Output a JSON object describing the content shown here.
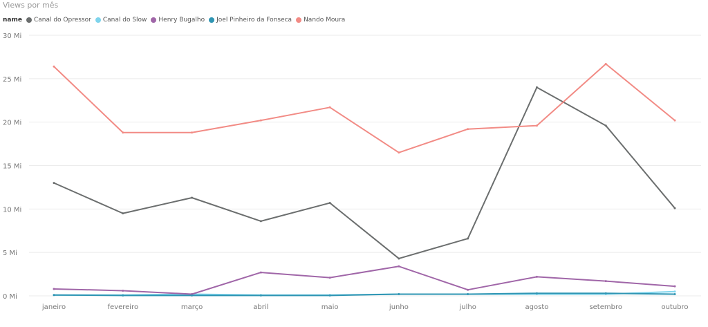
{
  "chart_data": {
    "type": "line",
    "title": "Views por mês",
    "legend_title": "name",
    "legend_position": "top-left",
    "categories": [
      "janeiro",
      "fevereiro",
      "março",
      "abril",
      "maio",
      "junho",
      "julho",
      "agosto",
      "setembro",
      "outubro"
    ],
    "y_ticks": [
      0,
      5,
      10,
      15,
      20,
      25,
      30
    ],
    "y_tick_labels": [
      "0 Mi",
      "5 Mi",
      "10 Mi",
      "15 Mi",
      "20 Mi",
      "25 Mi",
      "30 Mi"
    ],
    "ylim": [
      0,
      30
    ],
    "grid": true,
    "series": [
      {
        "name": "Canal do Opressor",
        "color": "#6b6e6e",
        "values": [
          13.0,
          9.5,
          11.3,
          8.6,
          10.7,
          4.3,
          6.6,
          24.0,
          19.6,
          10.1
        ]
      },
      {
        "name": "Canal do Slow",
        "color": "#7fd4ec",
        "values": [
          0.1,
          0.1,
          0.2,
          0.1,
          0.1,
          0.2,
          0.2,
          0.2,
          0.2,
          0.5
        ]
      },
      {
        "name": "Henry Bugalho",
        "color": "#a066a8",
        "values": [
          0.8,
          0.6,
          0.2,
          2.7,
          2.1,
          3.4,
          0.7,
          2.2,
          1.7,
          1.1
        ]
      },
      {
        "name": "Joel Pinheiro da Fonseca",
        "color": "#2f95b3",
        "values": [
          0.1,
          0.05,
          0.05,
          0.05,
          0.05,
          0.2,
          0.2,
          0.3,
          0.3,
          0.2
        ]
      },
      {
        "name": "Nando Moura",
        "color": "#f28b85",
        "values": [
          26.4,
          18.8,
          18.8,
          20.2,
          21.7,
          16.5,
          19.2,
          19.6,
          26.7,
          20.2
        ]
      }
    ]
  }
}
